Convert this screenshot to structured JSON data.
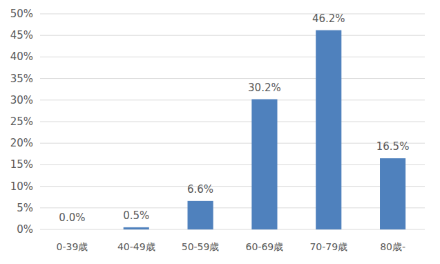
{
  "chart_data": {
    "type": "bar",
    "categories": [
      "0-39歳",
      "40-49歳",
      "50-59歳",
      "60-69歳",
      "70-79歳",
      "80歳-"
    ],
    "values": [
      0.0,
      0.5,
      6.6,
      30.2,
      46.2,
      16.5
    ],
    "value_labels": [
      "0.0%",
      "0.5%",
      "6.6%",
      "30.2%",
      "46.2%",
      "16.5%"
    ],
    "color": "#4f81bd",
    "ylim": [
      0,
      50
    ],
    "yticks": [
      {
        "value": 0,
        "label": "0%"
      },
      {
        "value": 5,
        "label": "5%"
      },
      {
        "value": 10,
        "label": "10%"
      },
      {
        "value": 15,
        "label": "15%"
      },
      {
        "value": 20,
        "label": "20%"
      },
      {
        "value": 25,
        "label": "25%"
      },
      {
        "value": 30,
        "label": "30%"
      },
      {
        "value": 35,
        "label": "35%"
      },
      {
        "value": 40,
        "label": "40%"
      },
      {
        "value": 45,
        "label": "45%"
      },
      {
        "value": 50,
        "label": "50%"
      }
    ],
    "grid": true,
    "data_labels": true
  }
}
